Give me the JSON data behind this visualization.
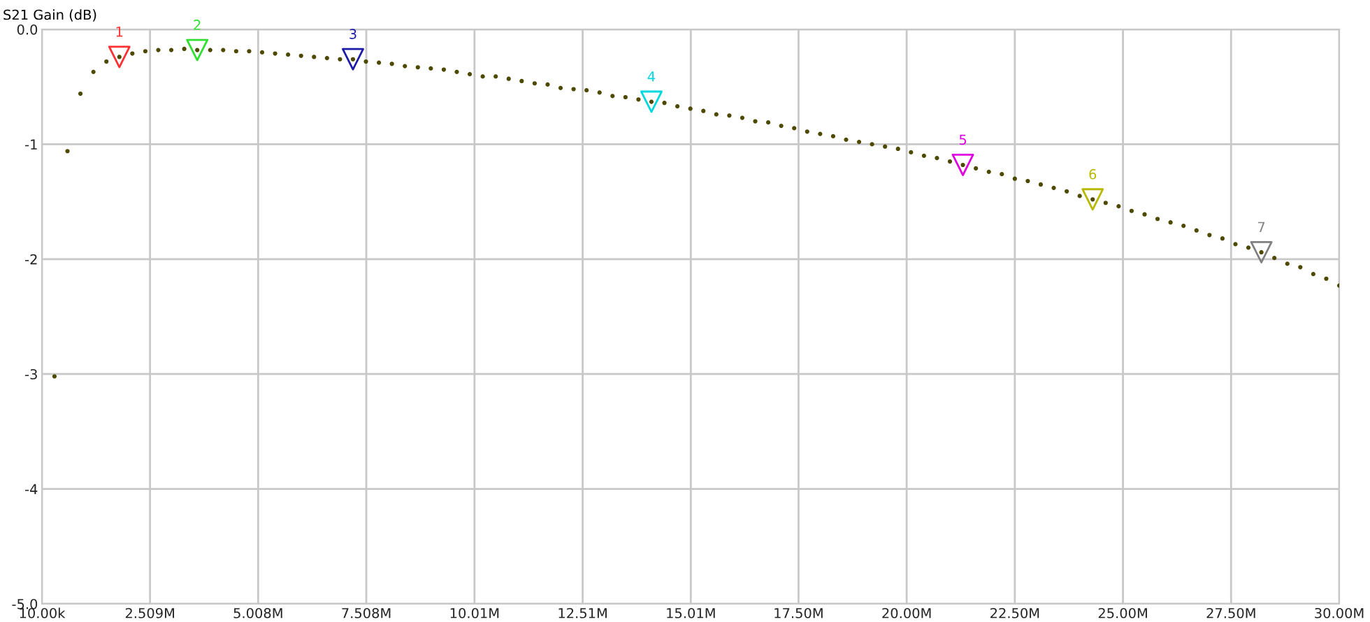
{
  "chart_data": {
    "type": "scatter",
    "ylabel": "S21 Gain (dB)",
    "xlim": [
      10000,
      30000000
    ],
    "xticks": [
      {
        "value": 10000,
        "label": "10.00k"
      },
      {
        "value": 2509000,
        "label": "2.509M"
      },
      {
        "value": 5008000,
        "label": "5.008M"
      },
      {
        "value": 7508000,
        "label": "7.508M"
      },
      {
        "value": 10010000,
        "label": "10.01M"
      },
      {
        "value": 12510000,
        "label": "12.51M"
      },
      {
        "value": 15010000,
        "label": "15.01M"
      },
      {
        "value": 17500000,
        "label": "17.50M"
      },
      {
        "value": 20000000,
        "label": "20.00M"
      },
      {
        "value": 22500000,
        "label": "22.50M"
      },
      {
        "value": 25000000,
        "label": "25.00M"
      },
      {
        "value": 27500000,
        "label": "27.50M"
      },
      {
        "value": 30000000,
        "label": "30.00M"
      }
    ],
    "ylim": [
      -5.0,
      0.0
    ],
    "yticks": [
      {
        "value": 0,
        "label": "0.0"
      },
      -1,
      -2,
      -3,
      -4,
      {
        "value": -5,
        "label": "-5.0"
      }
    ],
    "grid": true,
    "series": [
      {
        "color": "#4d4a00",
        "marker": "circle",
        "x": [
          300000,
          600000,
          900000,
          1200000,
          1500000,
          1800000,
          2100000,
          2400000,
          2700000,
          3000000,
          3300000,
          3600000,
          3900000,
          4200000,
          4500000,
          4800000,
          5100000,
          5400000,
          5700000,
          6000000,
          6300000,
          6600000,
          6900000,
          7200000,
          7500000,
          7800000,
          8100000,
          8400000,
          8700000,
          9000000,
          9300000,
          9600000,
          9900000,
          10200000,
          10500000,
          10800000,
          11100000,
          11400000,
          11700000,
          12000000,
          12300000,
          12600000,
          12900000,
          13200000,
          13500000,
          13800000,
          14100000,
          14400000,
          14700000,
          15000000,
          15300000,
          15600000,
          15900000,
          16200000,
          16500000,
          16800000,
          17100000,
          17400000,
          17700000,
          18000000,
          18300000,
          18600000,
          18900000,
          19200000,
          19500000,
          19800000,
          20100000,
          20400000,
          20700000,
          21000000,
          21300000,
          21600000,
          21900000,
          22200000,
          22500000,
          22800000,
          23100000,
          23400000,
          23700000,
          24000000,
          24300000,
          24600000,
          24900000,
          25200000,
          25500000,
          25800000,
          26100000,
          26400000,
          26700000,
          27000000,
          27300000,
          27600000,
          27900000,
          28200000,
          28500000,
          28800000,
          29100000,
          29400000,
          29700000,
          30000000
        ],
        "values": [
          -3.02,
          -1.06,
          -0.56,
          -0.37,
          -0.28,
          -0.24,
          -0.21,
          -0.19,
          -0.18,
          -0.18,
          -0.17,
          -0.18,
          -0.18,
          -0.18,
          -0.19,
          -0.19,
          -0.2,
          -0.21,
          -0.22,
          -0.23,
          -0.24,
          -0.25,
          -0.26,
          -0.26,
          -0.28,
          -0.29,
          -0.3,
          -0.32,
          -0.33,
          -0.34,
          -0.35,
          -0.37,
          -0.39,
          -0.41,
          -0.41,
          -0.43,
          -0.45,
          -0.47,
          -0.48,
          -0.51,
          -0.52,
          -0.53,
          -0.55,
          -0.58,
          -0.59,
          -0.61,
          -0.63,
          -0.64,
          -0.67,
          -0.69,
          -0.71,
          -0.74,
          -0.75,
          -0.77,
          -0.8,
          -0.81,
          -0.84,
          -0.86,
          -0.89,
          -0.91,
          -0.93,
          -0.96,
          -0.98,
          -1.0,
          -1.02,
          -1.04,
          -1.07,
          -1.1,
          -1.12,
          -1.15,
          -1.18,
          -1.21,
          -1.24,
          -1.26,
          -1.3,
          -1.32,
          -1.35,
          -1.38,
          -1.41,
          -1.45,
          -1.48,
          -1.51,
          -1.54,
          -1.58,
          -1.61,
          -1.65,
          -1.68,
          -1.71,
          -1.75,
          -1.79,
          -1.82,
          -1.87,
          -1.9,
          -1.94,
          -1.99,
          -2.04,
          -2.07,
          -2.13,
          -2.17,
          -2.23
        ]
      },
      {
        "color": "#ff3030",
        "marker": "triangle",
        "x": [
          1800000
        ],
        "values": [
          -0.24
        ]
      },
      {
        "color": "#30e030",
        "marker": "triangle",
        "x": [
          3600000
        ],
        "values": [
          -0.18
        ]
      },
      {
        "color": "#1c1ca8",
        "marker": "triangle",
        "x": [
          7200000
        ],
        "values": [
          -0.26
        ]
      },
      {
        "color": "#00d8e0",
        "marker": "triangle",
        "x": [
          14100000
        ],
        "values": [
          -0.63
        ]
      },
      {
        "color": "#e000e0",
        "marker": "triangle",
        "x": [
          21300000
        ],
        "values": [
          -1.18
        ]
      },
      {
        "color": "#b8b800",
        "marker": "triangle",
        "x": [
          24300000
        ],
        "values": [
          -1.48
        ]
      },
      {
        "color": "#808080",
        "marker": "triangle",
        "x": [
          28200000
        ],
        "values": [
          -1.94
        ]
      }
    ],
    "annotations": [
      {
        "text": "1",
        "x": 1800000,
        "y": -0.24
      },
      {
        "text": "2",
        "x": 3600000,
        "y": -0.18
      },
      {
        "text": "3",
        "x": 7200000,
        "y": -0.26
      },
      {
        "text": "4",
        "x": 14100000,
        "y": -0.63
      },
      {
        "text": "5",
        "x": 21300000,
        "y": -1.18
      },
      {
        "text": "6",
        "x": 24300000,
        "y": -1.48
      },
      {
        "text": "7",
        "x": 28200000,
        "y": -1.94
      }
    ]
  }
}
